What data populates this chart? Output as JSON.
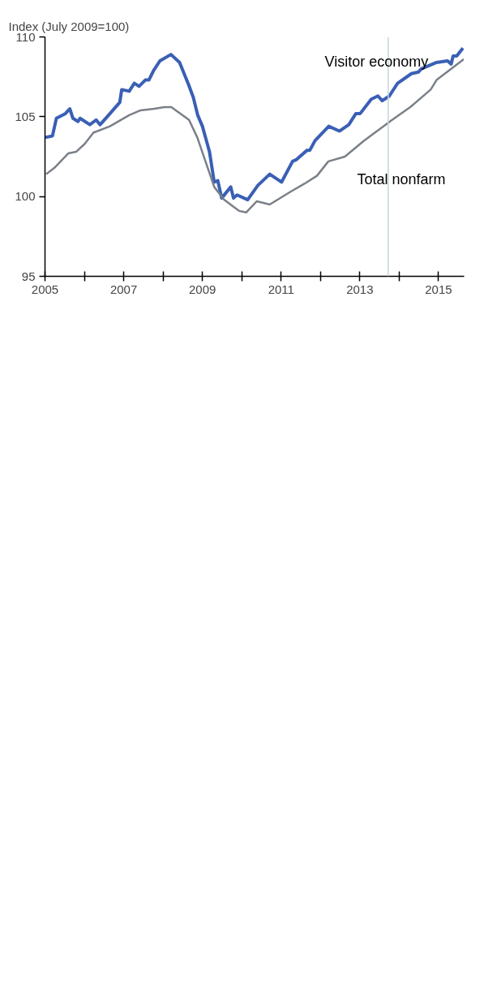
{
  "chart_data": {
    "type": "line",
    "ylabel": "Index (July 2009=100)",
    "xlim": [
      2005,
      2015.65
    ],
    "ylim": [
      95,
      110
    ],
    "xticks": [
      2005,
      {
        "value": 2006,
        "label": null
      },
      2007,
      {
        "value": 2008,
        "label": null
      },
      2009,
      {
        "value": 2010,
        "label": null
      },
      2011,
      {
        "value": 2012,
        "label": null
      },
      2013,
      {
        "value": 2014,
        "label": null
      },
      2015
    ],
    "yticks": [
      95,
      100,
      105,
      110
    ],
    "grid": false,
    "marker": "none",
    "line_style": "solid",
    "ref_lines": [
      {
        "axis": "x",
        "value": 2013.72,
        "color": "#c5d6d6"
      }
    ],
    "series": [
      {
        "name": "Visitor economy",
        "color": "#3a5fb5",
        "x": [
          2005.01,
          2005.19,
          2005.29,
          2005.52,
          2005.63,
          2005.71,
          2005.84,
          2005.89,
          2006.14,
          2006.3,
          2006.4,
          2006.58,
          2006.9,
          2006.95,
          2007.14,
          2007.27,
          2007.39,
          2007.55,
          2007.64,
          2007.76,
          2007.92,
          2008.2,
          2008.42,
          2008.65,
          2008.77,
          2008.88,
          2009.0,
          2009.18,
          2009.3,
          2009.39,
          2009.49,
          2009.72,
          2009.79,
          2009.88,
          2010.15,
          2010.41,
          2010.71,
          2011.01,
          2011.29,
          2011.38,
          2011.66,
          2011.73,
          2011.86,
          2012.21,
          2012.48,
          2012.72,
          2012.9,
          2013.01,
          2013.29,
          2013.46,
          2013.57,
          2013.75,
          2013.96,
          2014.31,
          2014.49,
          2014.56,
          2014.95,
          2015.23,
          2015.32,
          2015.37,
          2015.46,
          2015.62
        ],
        "values": [
          103.7,
          103.8,
          104.9,
          105.2,
          105.5,
          104.9,
          104.7,
          104.9,
          104.5,
          104.8,
          104.5,
          105.0,
          105.9,
          106.7,
          106.6,
          107.1,
          106.9,
          107.3,
          107.3,
          107.9,
          108.5,
          108.9,
          108.4,
          107.0,
          106.2,
          105.1,
          104.4,
          102.8,
          100.9,
          101.0,
          99.9,
          100.6,
          99.9,
          100.1,
          99.8,
          100.7,
          101.4,
          100.9,
          102.2,
          102.3,
          102.9,
          102.9,
          103.5,
          104.4,
          104.1,
          104.5,
          105.2,
          105.2,
          106.1,
          106.3,
          106.0,
          106.3,
          107.1,
          107.7,
          107.8,
          108.0,
          108.4,
          108.5,
          108.3,
          108.8,
          108.8,
          109.3
        ]
      },
      {
        "name": "Total nonfarm",
        "color": "#7a8088",
        "x": [
          2005.03,
          2005.24,
          2005.59,
          2005.79,
          2006.01,
          2006.23,
          2006.65,
          2007.14,
          2007.43,
          2007.78,
          2008.03,
          2008.21,
          2008.66,
          2008.87,
          2009.3,
          2009.55,
          2009.93,
          2010.11,
          2010.38,
          2010.71,
          2011.24,
          2011.59,
          2011.91,
          2012.2,
          2012.62,
          2013.11,
          2013.82,
          2014.28,
          2014.8,
          2014.95,
          2015.64
        ],
        "values": [
          101.4,
          101.8,
          102.7,
          102.8,
          103.3,
          104.0,
          104.4,
          105.1,
          105.4,
          105.5,
          105.6,
          105.6,
          104.8,
          103.7,
          100.6,
          99.8,
          99.1,
          99.0,
          99.7,
          99.5,
          100.3,
          100.8,
          101.3,
          102.2,
          102.5,
          103.5,
          104.8,
          105.6,
          106.7,
          107.3,
          108.6
        ]
      }
    ]
  }
}
